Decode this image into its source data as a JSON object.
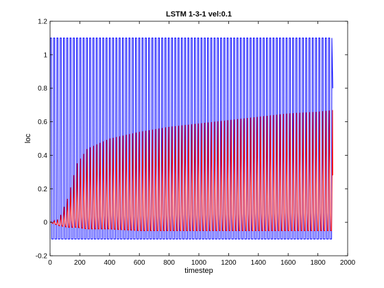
{
  "chart_data": {
    "type": "line",
    "title": "LSTM 1-3-1 vel:0.1",
    "xlabel": "timestep",
    "ylabel": "loc",
    "xlim": [
      0,
      2000
    ],
    "ylim": [
      -0.2,
      1.2
    ],
    "xticks": [
      "0",
      "200",
      "400",
      "600",
      "800",
      "1000",
      "1200",
      "1400",
      "1600",
      "1800",
      "2000"
    ],
    "yticks": [
      "-0.2",
      "0",
      "0.2",
      "0.4",
      "0.6",
      "0.8",
      "1",
      "1.2"
    ],
    "grid": false,
    "legend": "none",
    "series": [
      {
        "color": "#0000ff",
        "description_of_signal": "square-ish oscillation between -0.1 and 1.1",
        "x_start": 0,
        "x_end": 1900,
        "period": 22,
        "min": -0.1,
        "max": 1.1
      },
      {
        "color": "#ff0000",
        "description_of_signal": "oscillation starting near 0, envelope rising to ~0.67 upper and ~-0.05 lower",
        "x_start": 0,
        "x_end": 1900,
        "period": 22,
        "envelope_points": [
          {
            "x": 0,
            "upper": 0.0,
            "lower": 0.0
          },
          {
            "x": 60,
            "upper": 0.02,
            "lower": -0.02
          },
          {
            "x": 120,
            "upper": 0.15,
            "lower": -0.03
          },
          {
            "x": 180,
            "upper": 0.35,
            "lower": -0.03
          },
          {
            "x": 250,
            "upper": 0.44,
            "lower": -0.04
          },
          {
            "x": 400,
            "upper": 0.5,
            "lower": -0.04
          },
          {
            "x": 600,
            "upper": 0.54,
            "lower": -0.05
          },
          {
            "x": 800,
            "upper": 0.57,
            "lower": -0.05
          },
          {
            "x": 1000,
            "upper": 0.59,
            "lower": -0.05
          },
          {
            "x": 1200,
            "upper": 0.61,
            "lower": -0.05
          },
          {
            "x": 1400,
            "upper": 0.63,
            "lower": -0.05
          },
          {
            "x": 1600,
            "upper": 0.65,
            "lower": -0.05
          },
          {
            "x": 1800,
            "upper": 0.66,
            "lower": -0.05
          },
          {
            "x": 1900,
            "upper": 0.67,
            "lower": -0.05
          }
        ]
      }
    ]
  }
}
